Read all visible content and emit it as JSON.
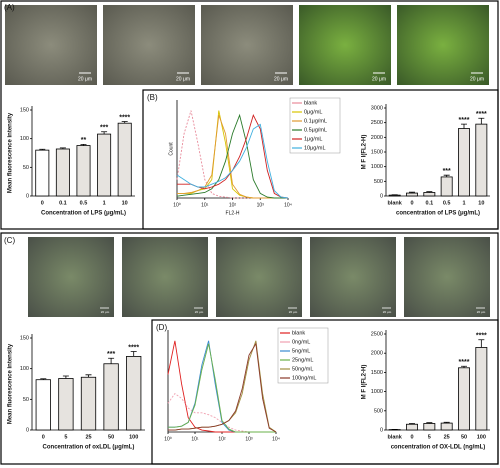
{
  "panel_labels": [
    "(A)",
    "(B)",
    "(C)",
    "(D)"
  ],
  "micrographs": {
    "A": [
      "20 μm",
      "20 μm",
      "20 μm",
      "20 μm",
      "20 μm"
    ],
    "C": [
      "20 μm",
      "20 μm",
      "20 μm",
      "20 μm",
      "20 μm"
    ]
  },
  "chart_data": [
    {
      "type": "bar",
      "ylabel": "Mean fluorescence intensity",
      "xlabel": "Concentration of LPS (μg/mL)",
      "categories": [
        "0",
        "0.1",
        "0.5",
        "1",
        "10"
      ],
      "values": [
        80,
        82,
        88,
        108,
        127
      ],
      "errors": [
        1.5,
        2,
        2,
        4,
        3
      ],
      "significance": [
        null,
        null,
        "**",
        "***",
        "****"
      ],
      "colors": [
        "#ffffff",
        "#e6e3df",
        "#e6e3df",
        "#e6e3df",
        "#e6e3df"
      ],
      "ylim": [
        0,
        150
      ],
      "yticks": [
        0,
        50,
        100,
        150
      ]
    },
    {
      "type": "line",
      "ylabel": "Count",
      "xlabel": "FL2-H",
      "xlog": true,
      "x": [
        1,
        1.8,
        3.2,
        5.6,
        10,
        18,
        32,
        56,
        100,
        180,
        320,
        560,
        1000,
        1800,
        3200,
        5600,
        10000
      ],
      "series": [
        {
          "name": "blank",
          "color": "#e88a9a",
          "dashed": true,
          "values": [
            20,
            70,
            95,
            60,
            20,
            5,
            2,
            1,
            0,
            0,
            0,
            0,
            0,
            0,
            0,
            0,
            0
          ]
        },
        {
          "name": "0μg/mL",
          "color": "#d8c400",
          "values": [
            5,
            5,
            5,
            8,
            10,
            20,
            95,
            60,
            10,
            3,
            1,
            0,
            0,
            0,
            0,
            0,
            0
          ]
        },
        {
          "name": "0.1μg/mL",
          "color": "#e09a30",
          "values": [
            5,
            5,
            6,
            8,
            12,
            25,
            90,
            70,
            15,
            4,
            1,
            0,
            0,
            0,
            0,
            0,
            0
          ]
        },
        {
          "name": "0.5μg/mL",
          "color": "#2a7a2a",
          "values": [
            2,
            3,
            4,
            5,
            6,
            10,
            20,
            40,
            70,
            90,
            60,
            20,
            5,
            1,
            0,
            0,
            0
          ]
        },
        {
          "name": "1μg/mL",
          "color": "#d02020",
          "values": [
            15,
            15,
            15,
            12,
            10,
            12,
            15,
            20,
            30,
            45,
            65,
            90,
            75,
            30,
            5,
            1,
            0
          ]
        },
        {
          "name": "10μg/mL",
          "color": "#40b0e0",
          "values": [
            25,
            20,
            15,
            12,
            12,
            15,
            18,
            22,
            30,
            40,
            55,
            75,
            80,
            40,
            8,
            1,
            0
          ]
        }
      ],
      "xlim": [
        1,
        10000
      ],
      "ylim": [
        0,
        100
      ],
      "xticks": [
        {
          "value": 1,
          "label": "10⁰"
        },
        {
          "value": 10,
          "label": "10¹"
        },
        {
          "value": 100,
          "label": "10²"
        },
        {
          "value": 1000,
          "label": "10³"
        },
        {
          "value": 10000,
          "label": "10⁴"
        }
      ]
    },
    {
      "type": "bar",
      "ylabel": "M F I(FL2-H)",
      "xlabel": "concentration of LPS (μg/mL)",
      "categories": [
        "blank",
        "0",
        "0.1",
        "0.5",
        "1",
        "10"
      ],
      "values": [
        30,
        100,
        120,
        650,
        2300,
        2450
      ],
      "errors": [
        10,
        30,
        30,
        60,
        150,
        200
      ],
      "significance": [
        null,
        null,
        null,
        "***",
        "****",
        "****"
      ],
      "colors": [
        "#ffffff",
        "#e6e3df",
        "#e6e3df",
        "#e6e3df",
        "#e6e3df",
        "#e6e3df"
      ],
      "ylim": [
        0,
        3000
      ],
      "yticks": [
        0,
        500,
        1000,
        1500,
        2000,
        2500,
        3000
      ]
    },
    {
      "type": "bar",
      "ylabel": "Mean fluorescence intensity",
      "xlabel": "Concentration of oxLDL (μg/mL)",
      "categories": [
        "0",
        "5",
        "25",
        "50",
        "100"
      ],
      "values": [
        82,
        84,
        86,
        108,
        120
      ],
      "errors": [
        1.5,
        4,
        4,
        9,
        8
      ],
      "significance": [
        null,
        null,
        null,
        "***",
        "****"
      ],
      "colors": [
        "#ffffff",
        "#e6e3df",
        "#e6e3df",
        "#e6e3df",
        "#e6e3df"
      ],
      "ylim": [
        0,
        150
      ],
      "yticks": [
        0,
        50,
        100,
        150
      ]
    },
    {
      "type": "line",
      "xlog": true,
      "x": [
        1,
        1.8,
        3.2,
        5.6,
        10,
        18,
        32,
        56,
        100,
        180,
        320,
        560,
        1000,
        1800,
        3200,
        5600,
        10000
      ],
      "series": [
        {
          "name": "blank",
          "color": "#e02020",
          "values": [
            60,
            95,
            50,
            15,
            5,
            2,
            1,
            0,
            0,
            0,
            0,
            0,
            0,
            0,
            0,
            0,
            0
          ]
        },
        {
          "name": "0ng/mL",
          "color": "#f0a0b0",
          "dashed": true,
          "values": [
            30,
            40,
            35,
            25,
            20,
            20,
            18,
            15,
            10,
            5,
            2,
            1,
            0,
            0,
            0,
            0,
            0
          ]
        },
        {
          "name": "5ng/mL",
          "color": "#3a8ad0",
          "values": [
            5,
            5,
            6,
            10,
            30,
            70,
            95,
            50,
            10,
            2,
            0,
            0,
            0,
            0,
            0,
            0,
            0
          ]
        },
        {
          "name": "25ng/mL",
          "color": "#6ab04a",
          "values": [
            5,
            5,
            6,
            10,
            28,
            65,
            92,
            55,
            12,
            3,
            0,
            0,
            0,
            0,
            0,
            0,
            0
          ]
        },
        {
          "name": "50ng/mL",
          "color": "#a09040",
          "values": [
            2,
            2,
            3,
            3,
            4,
            5,
            5,
            6,
            8,
            12,
            20,
            40,
            75,
            95,
            40,
            5,
            0
          ]
        },
        {
          "name": "100ng/mL",
          "color": "#8a3a2a",
          "values": [
            2,
            2,
            3,
            3,
            4,
            5,
            5,
            6,
            8,
            12,
            22,
            45,
            80,
            92,
            35,
            4,
            0
          ]
        }
      ],
      "xlim": [
        1,
        10000
      ],
      "ylim": [
        0,
        100
      ],
      "xticks": [
        {
          "value": 1,
          "label": "10⁰"
        },
        {
          "value": 10,
          "label": "10¹"
        },
        {
          "value": 100,
          "label": "10²"
        },
        {
          "value": 1000,
          "label": "10³"
        },
        {
          "value": 10000,
          "label": "10⁴"
        }
      ]
    },
    {
      "type": "bar",
      "ylabel": "M F I(FL2-H)",
      "xlabel": "concentration of OX-LDL (ng/mL)",
      "categories": [
        "blank",
        "0",
        "5",
        "25",
        "50",
        "100"
      ],
      "values": [
        10,
        150,
        170,
        180,
        1620,
        2150
      ],
      "errors": [
        5,
        20,
        20,
        20,
        40,
        200
      ],
      "significance": [
        null,
        null,
        null,
        null,
        "****",
        "****"
      ],
      "colors": [
        "#ffffff",
        "#e6e3df",
        "#e6e3df",
        "#e6e3df",
        "#e6e3df",
        "#e6e3df"
      ],
      "ylim": [
        0,
        2500
      ],
      "yticks": [
        0,
        500,
        1000,
        1500,
        2000,
        2500
      ]
    }
  ]
}
